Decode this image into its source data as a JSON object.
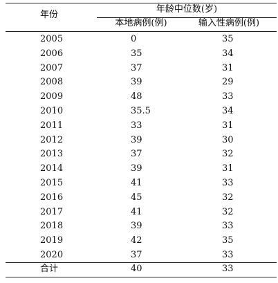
{
  "table": {
    "header": {
      "year": "年份",
      "group": "年龄中位数(岁)",
      "local": "本地病例(例)",
      "imported": "输入性病例(例)"
    },
    "rows": [
      {
        "year": "2005",
        "local": "0",
        "imported": "35"
      },
      {
        "year": "2006",
        "local": "35",
        "imported": "34"
      },
      {
        "year": "2007",
        "local": "37",
        "imported": "31"
      },
      {
        "year": "2008",
        "local": "39",
        "imported": "29"
      },
      {
        "year": "2009",
        "local": "48",
        "imported": "33"
      },
      {
        "year": "2010",
        "local": "35.5",
        "imported": "34"
      },
      {
        "year": "2011",
        "local": "33",
        "imported": "31"
      },
      {
        "year": "2012",
        "local": "39",
        "imported": "30"
      },
      {
        "year": "2013",
        "local": "37",
        "imported": "32"
      },
      {
        "year": "2014",
        "local": "39",
        "imported": "31"
      },
      {
        "year": "2015",
        "local": "41",
        "imported": "33"
      },
      {
        "year": "2016",
        "local": "45",
        "imported": "32"
      },
      {
        "year": "2017",
        "local": "41",
        "imported": "32"
      },
      {
        "year": "2018",
        "local": "39",
        "imported": "33"
      },
      {
        "year": "2019",
        "local": "42",
        "imported": "35"
      },
      {
        "year": "2020",
        "local": "37",
        "imported": "33"
      }
    ],
    "total": {
      "year": "合计",
      "local": "40",
      "imported": "33"
    }
  }
}
